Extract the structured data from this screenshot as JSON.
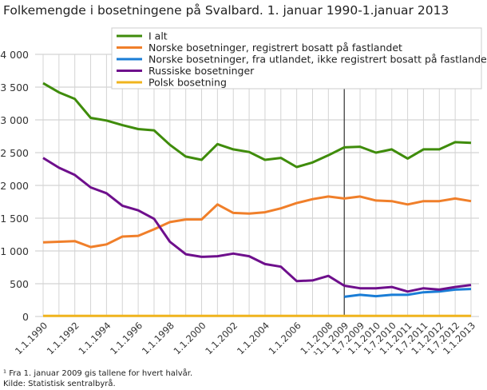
{
  "chart_data": {
    "type": "line",
    "title": "Folkemengde i bosetningene på Svalbard. 1. januar 1990-1.januar 2013",
    "xlabel": "",
    "ylabel": "",
    "ylim": [
      0,
      4000
    ],
    "yticks": [
      0,
      500,
      1000,
      1500,
      2000,
      2500,
      3000,
      3500,
      4000
    ],
    "ytick_labels": [
      "0",
      "500",
      "1 000",
      "1 500",
      "2 000",
      "2 500",
      "3 000",
      "3 500",
      "4 000"
    ],
    "grid": true,
    "legend_placement": "top-right",
    "categories": [
      "1.1.1990",
      "1.1.1991",
      "1.1.1992",
      "1.1.1993",
      "1.1.1994",
      "1.1.1995",
      "1.1.1996",
      "1.1.1997",
      "1.1.1998",
      "1.1.1999",
      "1.1.2000",
      "1.1.2001",
      "1.1.2002",
      "1.1.2003",
      "1.1.2004",
      "1.1.2005",
      "1.1.2006",
      "1.1.2007",
      "1.1.2008",
      "¹1.1.2009",
      "1.7.2009",
      "1.1.2010",
      "1.7.2010",
      "1.1.2011",
      "1.7.2011",
      "1.1.2012",
      "1.7.2012",
      "1.1.2013"
    ],
    "shown_tick_labels": [
      "1.1.1990",
      "1.1.1992",
      "1.1.1994",
      "1.1.1996",
      "1.1.1998",
      "1.1.2000",
      "1.1.2002",
      "1.1.2004",
      "1.1.2006",
      "1.1.2008",
      "¹1.1.2009",
      "1.7.2009",
      "1.1.2010",
      "1.7.2010",
      "1.1.2011",
      "1.7.2011",
      "1.1.2012",
      "1.7.2012",
      "1.1.2013"
    ],
    "marker_line_at": "¹1.1.2009",
    "series": [
      {
        "name": "I alt",
        "color": "#3f8c0b",
        "values": [
          3560,
          3420,
          3320,
          3030,
          2990,
          2920,
          2860,
          2840,
          2620,
          2440,
          2390,
          2630,
          2550,
          2510,
          2390,
          2420,
          2280,
          2350,
          2460,
          2580,
          2590,
          2500,
          2550,
          2410,
          2550,
          2550,
          2660,
          2650
        ]
      },
      {
        "name": "Norske bosetninger, registrert bosatt på fastlandet",
        "color": "#f07f2a",
        "values": [
          1130,
          1140,
          1150,
          1060,
          1100,
          1220,
          1230,
          1330,
          1440,
          1480,
          1480,
          1710,
          1580,
          1570,
          1590,
          1650,
          1730,
          1790,
          1830,
          1800,
          1830,
          1770,
          1760,
          1710,
          1760,
          1760,
          1800,
          1760
        ]
      },
      {
        "name": "Norske bosetninger, fra utlandet, ikke registrert bosatt på fastlandet",
        "color": "#1a7dd6",
        "values": [
          null,
          null,
          null,
          null,
          null,
          null,
          null,
          null,
          null,
          null,
          null,
          null,
          null,
          null,
          null,
          null,
          null,
          null,
          null,
          300,
          330,
          310,
          330,
          330,
          370,
          380,
          410,
          420
        ]
      },
      {
        "name": "Russiske bosetninger",
        "color": "#6e0f8c",
        "values": [
          2420,
          2270,
          2160,
          1970,
          1880,
          1690,
          1620,
          1490,
          1140,
          950,
          910,
          920,
          960,
          920,
          800,
          760,
          540,
          550,
          620,
          470,
          430,
          430,
          450,
          380,
          430,
          410,
          450,
          480
        ]
      },
      {
        "name": "Polsk bosetning",
        "color": "#f0b41e",
        "values": [
          10,
          10,
          10,
          10,
          10,
          10,
          10,
          10,
          10,
          10,
          10,
          10,
          10,
          10,
          10,
          10,
          10,
          10,
          10,
          10,
          10,
          10,
          10,
          10,
          10,
          10,
          10,
          10
        ]
      }
    ]
  },
  "footnote": "¹ Fra 1. januar 2009 gis tallene for hvert halvår.",
  "source": "Kilde: Statistisk sentralbyrå."
}
